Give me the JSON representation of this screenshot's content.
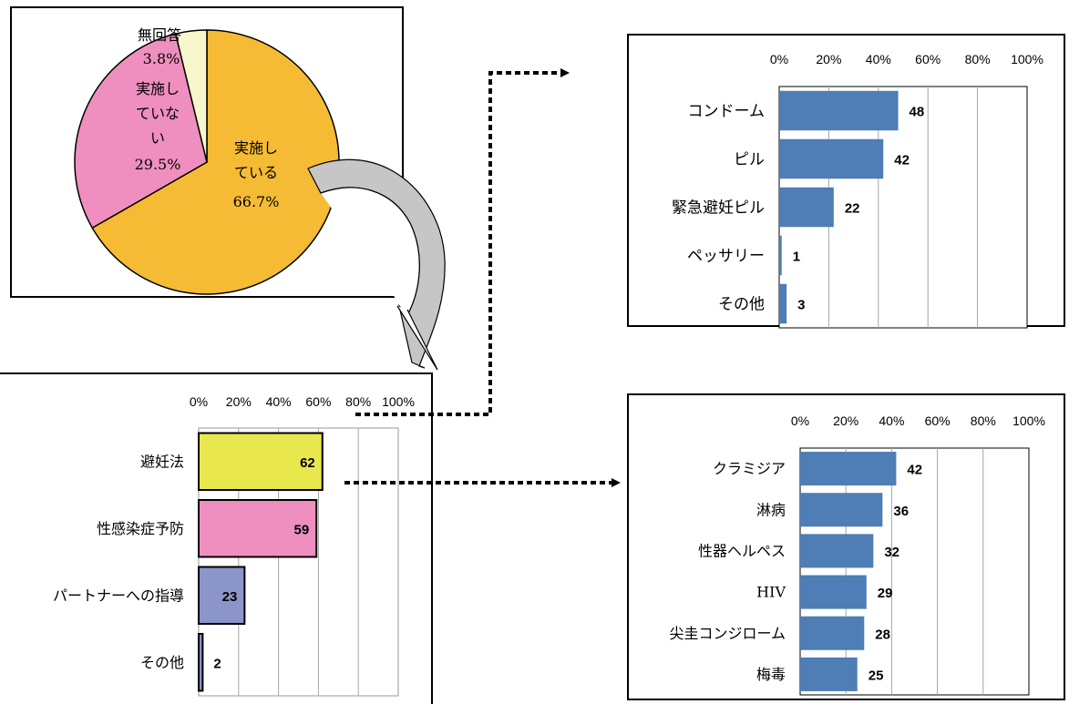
{
  "chart_data": [
    {
      "type": "pie",
      "labels": [
        "実施している",
        "実施していない",
        "無回答"
      ],
      "values": [
        66.7,
        29.5,
        3.8
      ],
      "value_labels": [
        "66.7%",
        "29.5%",
        "3.8%"
      ],
      "colors": [
        "#f5bb35",
        "#ef8fbf",
        "#f8f7cc"
      ]
    },
    {
      "type": "bar",
      "orientation": "horizontal",
      "categories": [
        "避妊法",
        "性感染症予防",
        "パートナーへの指導",
        "その他"
      ],
      "values": [
        62,
        59,
        23,
        2
      ],
      "bar_colors": [
        "#e8e84e",
        "#ef8fbf",
        "#8b95c9",
        "#8b95c9"
      ],
      "bar_outline": "#000000",
      "xlim": [
        0,
        100
      ],
      "x_ticks": [
        "0%",
        "20%",
        "40%",
        "60%",
        "80%",
        "100%"
      ],
      "grid": true
    },
    {
      "type": "bar",
      "orientation": "horizontal",
      "categories": [
        "コンドーム",
        "ピル",
        "緊急避妊ピル",
        "ペッサリー",
        "その他"
      ],
      "values": [
        48,
        42,
        22,
        1,
        3
      ],
      "bar_color": "#4f7db5",
      "xlim": [
        0,
        100
      ],
      "x_ticks": [
        "0%",
        "20%",
        "40%",
        "60%",
        "80%",
        "100%"
      ],
      "grid": true
    },
    {
      "type": "bar",
      "orientation": "horizontal",
      "categories": [
        "クラミジア",
        "淋病",
        "性器ヘルペス",
        "HIV",
        "尖圭コンジローム",
        "梅毒"
      ],
      "values": [
        42,
        36,
        32,
        29,
        28,
        25
      ],
      "bar_color": "#4f7db5",
      "xlim": [
        0,
        100
      ],
      "x_ticks": [
        "0%",
        "20%",
        "40%",
        "60%",
        "80%",
        "100%"
      ],
      "grid": true
    }
  ]
}
